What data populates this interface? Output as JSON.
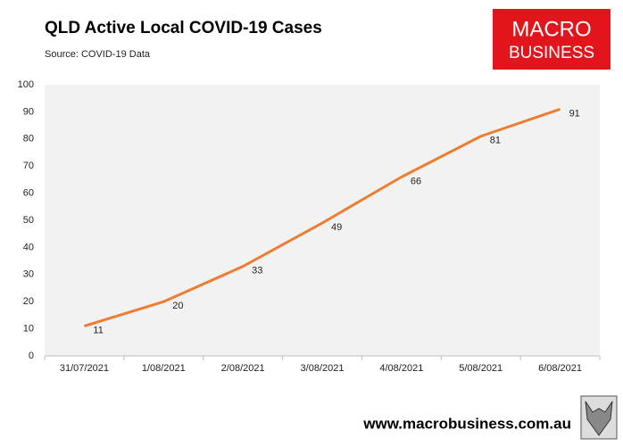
{
  "chart_data": {
    "type": "line",
    "title": "QLD Active Local COVID-19 Cases",
    "subtitle": "Source: COVID-19 Data",
    "categories": [
      "31/07/2021",
      "1/08/2021",
      "2/08/2021",
      "3/08/2021",
      "4/08/2021",
      "5/08/2021",
      "6/08/2021"
    ],
    "values": [
      11,
      20,
      33,
      49,
      66,
      81,
      91
    ],
    "color": "#ed7d31",
    "ylim": [
      0,
      100
    ],
    "yticks": [
      0,
      10,
      20,
      30,
      40,
      50,
      60,
      70,
      80,
      90,
      100
    ],
    "grid": false
  },
  "logo": {
    "line1": "MACRO",
    "line2": "BUSINESS"
  },
  "footer": {
    "url": "www.macrobusiness.com.au"
  }
}
